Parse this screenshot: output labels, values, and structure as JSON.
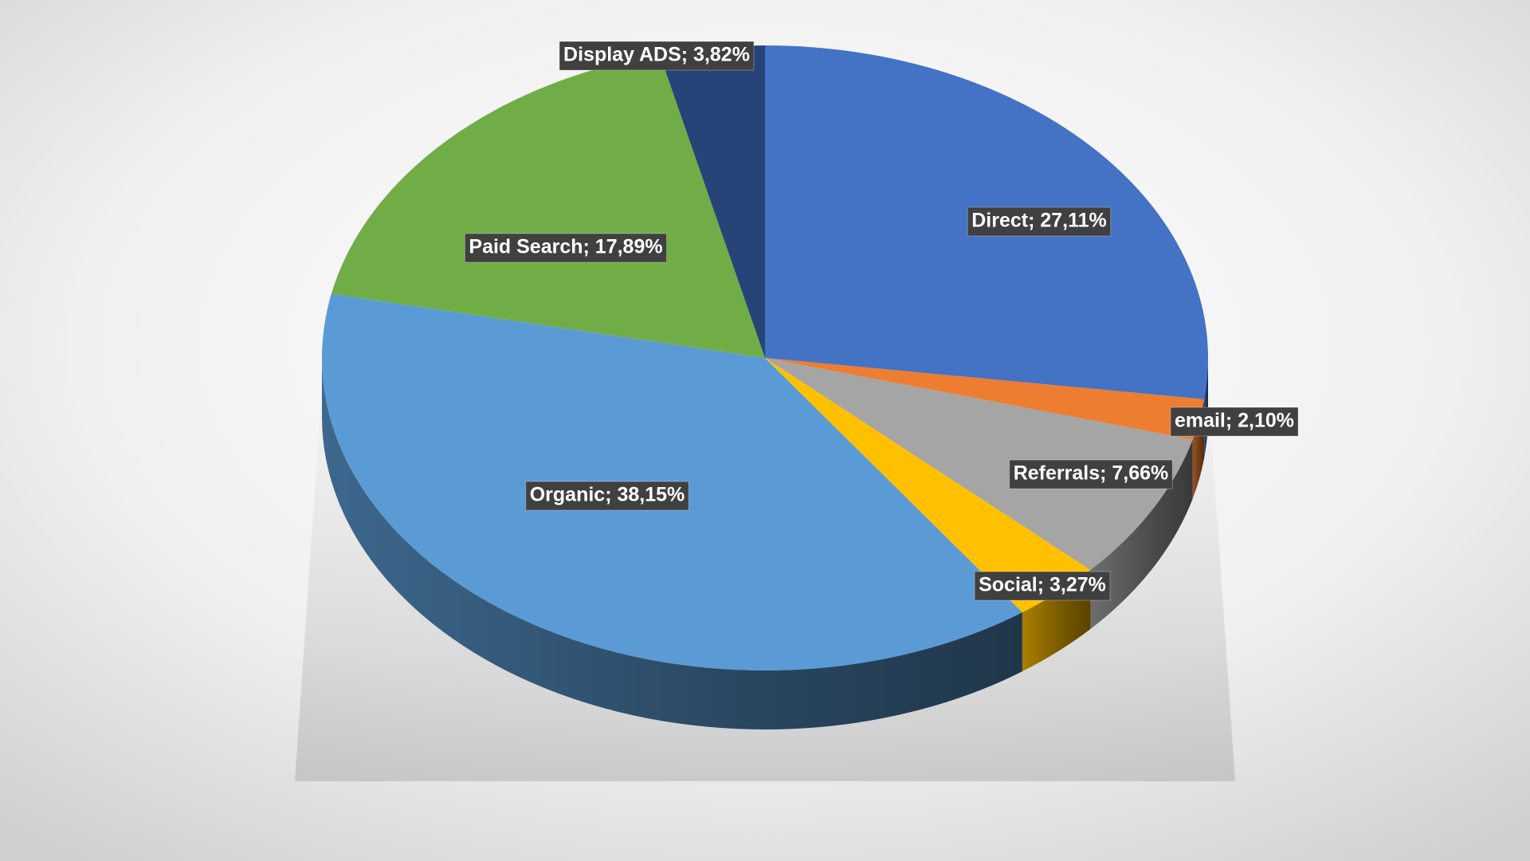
{
  "chart_data": {
    "type": "pie",
    "values": [
      27.11,
      2.1,
      7.66,
      3.27,
      38.15,
      17.89,
      3.82
    ],
    "value_labels": [
      "Direct; 27,11%",
      "email; 2,10%",
      "Referrals; 7,66%",
      "Social; 3,27%",
      "Organic; 38,15%",
      "Paid Search; 17,89%",
      "Display ADS; 3,82%"
    ],
    "colors": [
      "#4472c4",
      "#ed7d31",
      "#a5a5a5",
      "#ffc000",
      "#5b9bd5",
      "#70ad47",
      "#264478"
    ]
  }
}
